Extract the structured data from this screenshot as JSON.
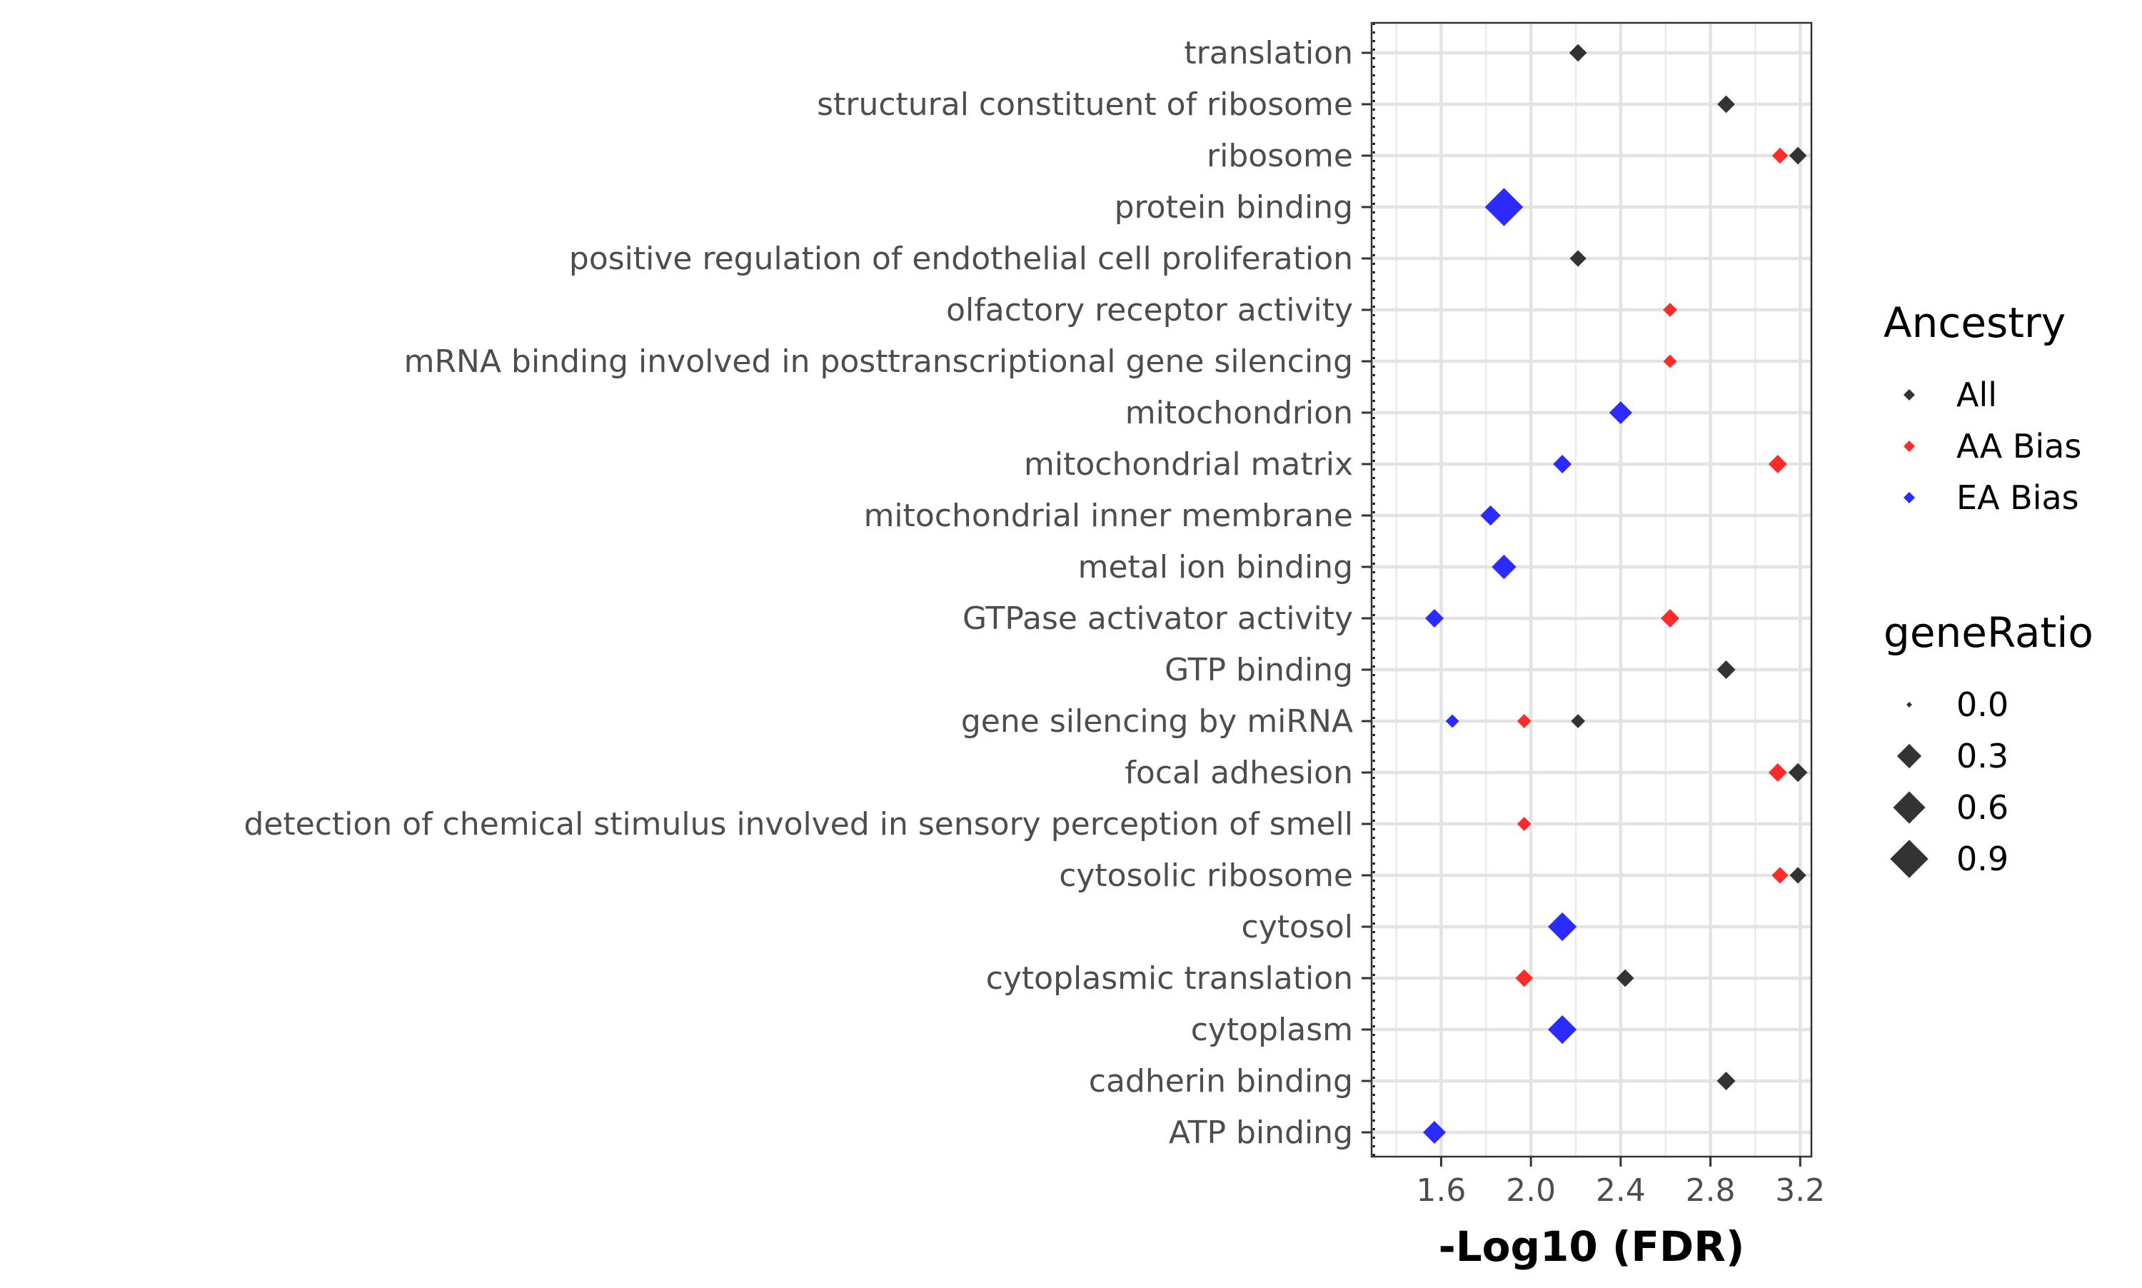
{
  "chart_data": {
    "type": "scatter",
    "title": "",
    "xlabel": "-Log10 (FDR)",
    "ylabel": "",
    "xlim": [
      1.29,
      3.25
    ],
    "x_ticks": [
      "1.6",
      "2.0",
      "2.4",
      "2.8",
      "3.2"
    ],
    "x_tick_values": [
      1.6,
      2.0,
      2.4,
      2.8,
      3.2
    ],
    "reference_line": {
      "x": 1.3,
      "style": "dotted"
    },
    "grid": true,
    "legend_placement": "right",
    "categories": [
      "translation",
      "structural constituent of ribosome",
      "ribosome",
      "protein binding",
      "positive regulation of endothelial cell proliferation",
      "olfactory receptor activity",
      "mRNA binding involved in posttranscriptional gene silencing",
      "mitochondrion",
      "mitochondrial matrix",
      "mitochondrial inner membrane",
      "metal ion binding",
      "GTPase activator activity",
      "GTP binding",
      "gene silencing by miRNA",
      "focal adhesion",
      "detection of chemical stimulus involved in sensory perception of smell",
      "cytosolic ribosome",
      "cytosol",
      "cytoplasmic translation",
      "cytoplasm",
      "cadherin binding",
      "ATP binding"
    ],
    "series": [
      {
        "name": "All",
        "color": "#333333",
        "points": [
          {
            "category": "translation",
            "x": 2.21,
            "geneRatio": 0.12
          },
          {
            "category": "structural constituent of ribosome",
            "x": 2.87,
            "geneRatio": 0.12
          },
          {
            "category": "ribosome",
            "x": 3.19,
            "geneRatio": 0.12
          },
          {
            "category": "positive regulation of endothelial cell proliferation",
            "x": 2.21,
            "geneRatio": 0.1
          },
          {
            "category": "GTP binding",
            "x": 2.87,
            "geneRatio": 0.14
          },
          {
            "category": "gene silencing by miRNA",
            "x": 2.21,
            "geneRatio": 0.06
          },
          {
            "category": "focal adhesion",
            "x": 3.19,
            "geneRatio": 0.15
          },
          {
            "category": "cytosolic ribosome",
            "x": 3.19,
            "geneRatio": 0.1
          },
          {
            "category": "cytoplasmic translation",
            "x": 2.42,
            "geneRatio": 0.12
          },
          {
            "category": "cadherin binding",
            "x": 2.87,
            "geneRatio": 0.14
          }
        ]
      },
      {
        "name": "AA Bias",
        "color": "#ff2b2b",
        "points": [
          {
            "category": "ribosome",
            "x": 3.11,
            "geneRatio": 0.09
          },
          {
            "category": "olfactory receptor activity",
            "x": 2.62,
            "geneRatio": 0.06
          },
          {
            "category": "mRNA binding involved in posttranscriptional gene silencing",
            "x": 2.62,
            "geneRatio": 0.05
          },
          {
            "category": "mitochondrial matrix",
            "x": 3.1,
            "geneRatio": 0.14
          },
          {
            "category": "GTPase activator activity",
            "x": 2.62,
            "geneRatio": 0.14
          },
          {
            "category": "gene silencing by miRNA",
            "x": 1.97,
            "geneRatio": 0.06
          },
          {
            "category": "focal adhesion",
            "x": 3.1,
            "geneRatio": 0.14
          },
          {
            "category": "detection of chemical stimulus involved in sensory perception of smell",
            "x": 1.97,
            "geneRatio": 0.06
          },
          {
            "category": "cytosolic ribosome",
            "x": 3.11,
            "geneRatio": 0.1
          },
          {
            "category": "cytoplasmic translation",
            "x": 1.97,
            "geneRatio": 0.12
          }
        ]
      },
      {
        "name": "EA Bias",
        "color": "#2b2bff",
        "points": [
          {
            "category": "protein binding",
            "x": 1.88,
            "geneRatio": 0.9
          },
          {
            "category": "mitochondrion",
            "x": 2.4,
            "geneRatio": 0.25
          },
          {
            "category": "mitochondrial matrix",
            "x": 2.14,
            "geneRatio": 0.14
          },
          {
            "category": "mitochondrial inner membrane",
            "x": 1.82,
            "geneRatio": 0.18
          },
          {
            "category": "metal ion binding",
            "x": 1.88,
            "geneRatio": 0.3
          },
          {
            "category": "GTPase activator activity",
            "x": 1.57,
            "geneRatio": 0.14
          },
          {
            "category": "gene silencing by miRNA",
            "x": 1.65,
            "geneRatio": 0.05
          },
          {
            "category": "cytosol",
            "x": 2.14,
            "geneRatio": 0.45
          },
          {
            "category": "cytoplasm",
            "x": 2.14,
            "geneRatio": 0.45
          },
          {
            "category": "ATP binding",
            "x": 1.57,
            "geneRatio": 0.25
          }
        ]
      }
    ],
    "legends": {
      "color": {
        "title": "Ancestry",
        "entries": [
          "All",
          "AA Bias",
          "EA Bias"
        ]
      },
      "size": {
        "title": "geneRatio",
        "labels": [
          "0.0",
          "0.3",
          "0.6",
          "0.9"
        ],
        "values": [
          0.0,
          0.3,
          0.6,
          0.9
        ],
        "color": "#333333"
      }
    }
  }
}
